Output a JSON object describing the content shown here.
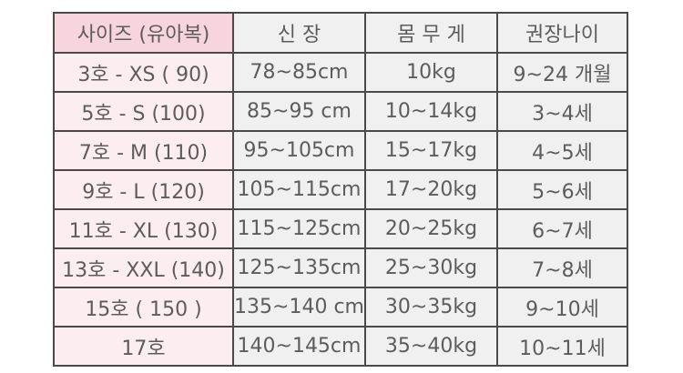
{
  "page": {
    "background": "#ffffff"
  },
  "colors": {
    "header_pink": "#f8d5dc",
    "column_pink": "#fcedf0",
    "cell_gray": "#f1f0f0",
    "border": "#4a4a4a",
    "text": "#5c5c5c"
  },
  "table": {
    "columns": [
      {
        "label": "사이즈 (유아복)"
      },
      {
        "label": "신 장"
      },
      {
        "label": "몸 무 게"
      },
      {
        "label": "권장나이"
      }
    ],
    "rows": [
      [
        "3호 - XS ( 90)",
        "78~85cm",
        "10kg",
        "9~24 개월"
      ],
      [
        "5호 - S (100)",
        "85~95 cm",
        "10~14kg",
        "3~4세"
      ],
      [
        "7호 - M (110)",
        "95~105cm",
        "15~17kg",
        "4~5세"
      ],
      [
        "9호 - L (120)",
        "105~115cm",
        "17~20kg",
        "5~6세"
      ],
      [
        "11호 - XL (130)",
        "115~125cm",
        "20~25kg",
        "6~7세"
      ],
      [
        "13호 - XXL (140)",
        "125~135cm",
        "25~30kg",
        "7~8세"
      ],
      [
        "15호 ( 150 )",
        "135~140 cm",
        "30~35kg",
        "9~10세"
      ],
      [
        "17호",
        "140~145cm",
        "35~40kg",
        "10~11세"
      ]
    ]
  },
  "chart_data": {
    "type": "table",
    "columns": [
      "사이즈 (유아복)",
      "신 장",
      "몸 무 게",
      "권장나이"
    ],
    "rows": [
      [
        "3호 - XS ( 90)",
        "78~85cm",
        "10kg",
        "9~24 개월"
      ],
      [
        "5호 - S (100)",
        "85~95 cm",
        "10~14kg",
        "3~4세"
      ],
      [
        "7호 - M (110)",
        "95~105cm",
        "15~17kg",
        "4~5세"
      ],
      [
        "9호 - L (120)",
        "105~115cm",
        "17~20kg",
        "5~6세"
      ],
      [
        "11호 - XL (130)",
        "115~125cm",
        "20~25kg",
        "6~7세"
      ],
      [
        "13호 - XXL (140)",
        "125~135cm",
        "25~30kg",
        "7~8세"
      ],
      [
        "15호 ( 150 )",
        "135~140 cm",
        "30~35kg",
        "9~10세"
      ],
      [
        "17호",
        "140~145cm",
        "35~40kg",
        "10~11세"
      ]
    ],
    "notes": {
      "size_units": "호 (Korean size) / cm (height) / kg (weight) / 세·개월 (age)",
      "layout": "first column pink highlighted, header first cell darker pink, grid borders dark gray"
    }
  }
}
